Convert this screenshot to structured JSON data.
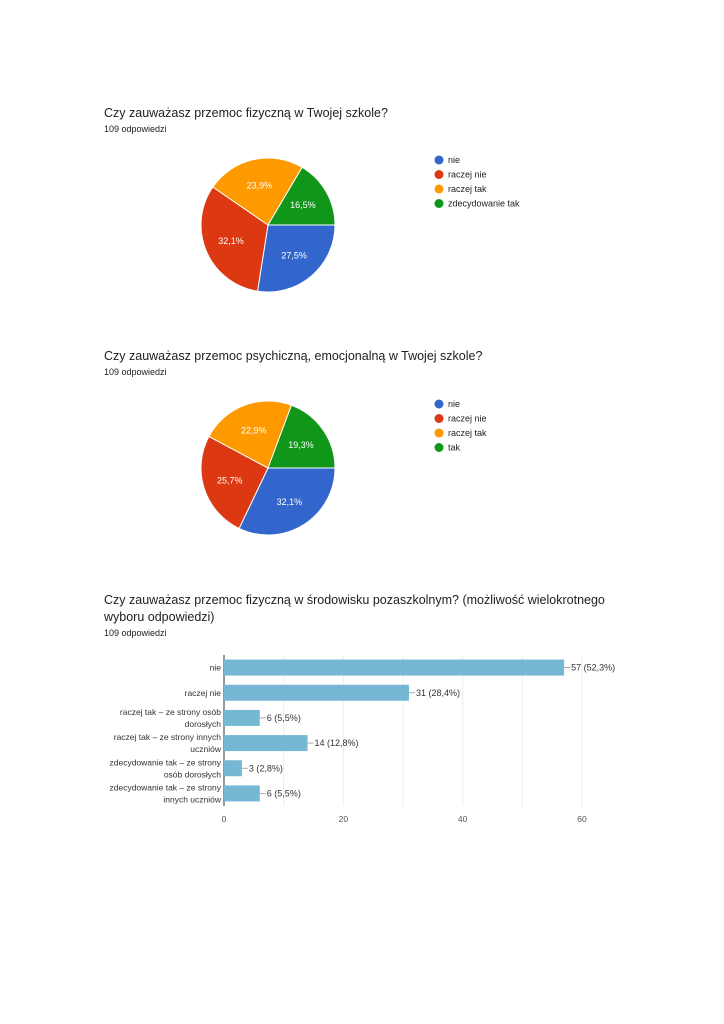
{
  "chart_data": [
    {
      "type": "pie",
      "title": "Czy zauważasz przemoc fizyczną w Twojej szkole?",
      "subtitle": "109 odpowiedzi",
      "legend_position": "right",
      "categories": [
        "nie",
        "raczej nie",
        "raczej tak",
        "zdecydowanie tak"
      ],
      "values": [
        27.5,
        32.1,
        23.9,
        16.5
      ],
      "labels": [
        "27,5%",
        "32,1%",
        "23,9%",
        "16,5%"
      ],
      "colors": [
        "#3366cc",
        "#dc3912",
        "#ff9900",
        "#109618"
      ]
    },
    {
      "type": "pie",
      "title": "Czy zauważasz przemoc psychiczną, emocjonalną w Twojej szkole?",
      "subtitle": "109 odpowiedzi",
      "legend_position": "right",
      "categories": [
        "nie",
        "raczej nie",
        "raczej tak",
        "tak"
      ],
      "values": [
        32.1,
        25.7,
        22.9,
        19.3
      ],
      "labels": [
        "32,1%",
        "25,7%",
        "22,9%",
        "19,3%"
      ],
      "colors": [
        "#3366cc",
        "#dc3912",
        "#ff9900",
        "#109618"
      ]
    },
    {
      "type": "bar",
      "orientation": "horizontal",
      "title": "Czy zauważasz przemoc fizyczną w środowisku pozaszkolnym?  (możliwość wielokrotnego wyboru odpowiedzi)",
      "subtitle": "109 odpowiedzi",
      "categories": [
        [
          "nie"
        ],
        [
          "raczej nie"
        ],
        [
          "raczej tak – ze strony osób",
          "dorosłych"
        ],
        [
          "raczej tak – ze strony innych",
          "uczniów"
        ],
        [
          "zdecydowanie tak – ze strony",
          "osób dorosłych"
        ],
        [
          "zdecydowanie tak – ze strony",
          "innych uczniów"
        ]
      ],
      "values": [
        57,
        31,
        6,
        14,
        3,
        6
      ],
      "labels": [
        "57 (52,3%)",
        "31 (28,4%)",
        "6 (5,5%)",
        "14 (12,8%)",
        "3 (2,8%)",
        "6 (5,5%)"
      ],
      "xlim": [
        0,
        60
      ],
      "xticks": [
        "0",
        "20",
        "40",
        "60"
      ],
      "grid": true,
      "color": "#76b8d4"
    }
  ]
}
